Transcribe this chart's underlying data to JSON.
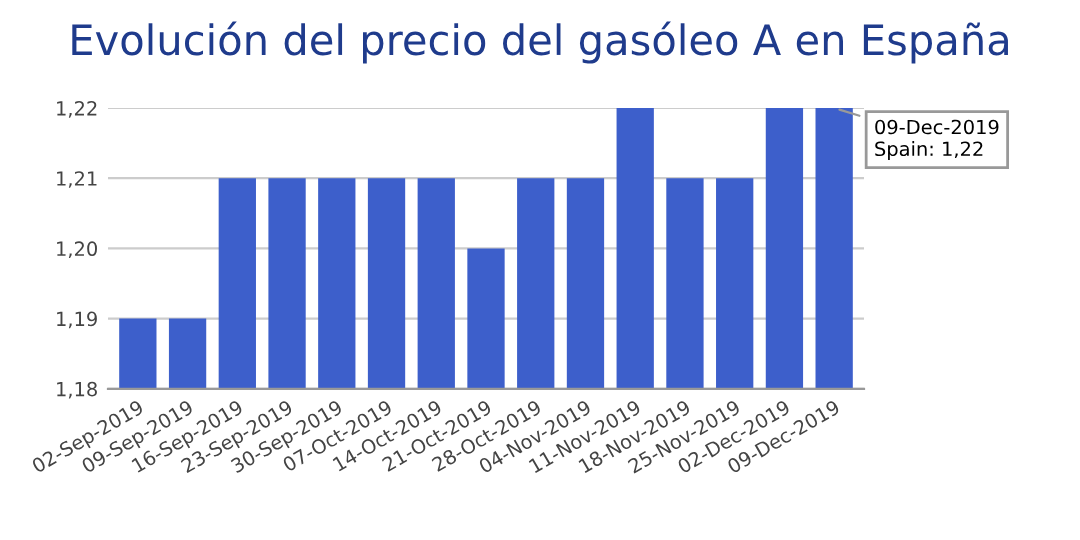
{
  "chart_data": {
    "type": "bar",
    "title": "Evolución del precio del gasóleo A en España",
    "categories": [
      "02-Sep-2019",
      "09-Sep-2019",
      "16-Sep-2019",
      "23-Sep-2019",
      "30-Sep-2019",
      "07-Oct-2019",
      "14-Oct-2019",
      "21-Oct-2019",
      "28-Oct-2019",
      "04-Nov-2019",
      "11-Nov-2019",
      "18-Nov-2019",
      "25-Nov-2019",
      "02-Dec-2019",
      "09-Dec-2019"
    ],
    "values": [
      1.19,
      1.19,
      1.21,
      1.21,
      1.21,
      1.21,
      1.21,
      1.2,
      1.21,
      1.21,
      1.22,
      1.21,
      1.21,
      1.22,
      1.22
    ],
    "color": "#3d5fcb",
    "ylim": [
      1.18,
      1.22
    ],
    "yticks": [
      {
        "value": 1.18,
        "label": "1,18"
      },
      {
        "value": 1.19,
        "label": "1,19"
      },
      {
        "value": 1.2,
        "label": "1,20"
      },
      {
        "value": 1.21,
        "label": "1,21"
      },
      {
        "value": 1.22,
        "label": "1,22"
      }
    ],
    "grid": "y",
    "annotations": [
      {
        "text": "09-Dec-2019\nSpain: 1,22",
        "x": "09-Dec-2019",
        "y": 1.22
      }
    ]
  }
}
